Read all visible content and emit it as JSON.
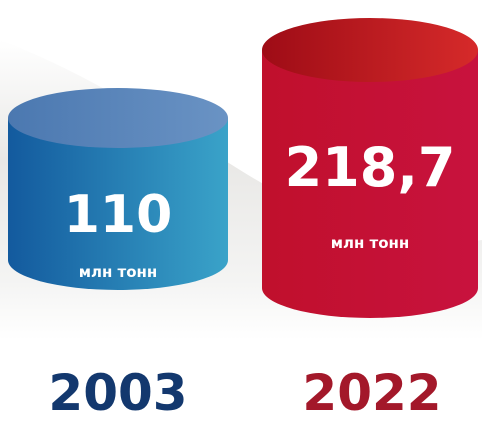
{
  "items": [
    {
      "value": "110",
      "unit": "млн тонн",
      "year": "2003"
    },
    {
      "value": "218,7",
      "unit": "млн тонн",
      "year": "2022"
    }
  ]
}
